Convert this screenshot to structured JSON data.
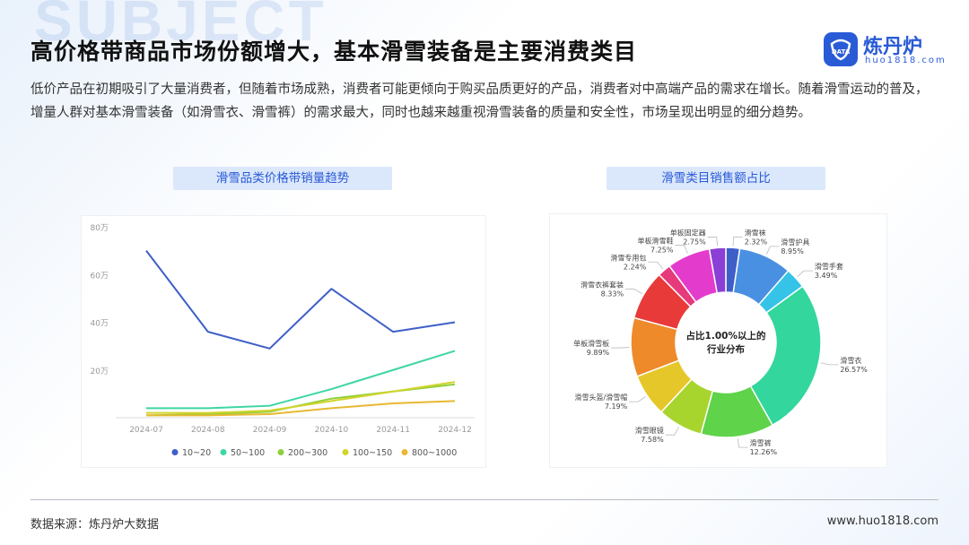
{
  "background_word": "SUBJECT",
  "header": {
    "title": "高价格带商品市场份额增大，基本滑雪装备是主要消费类目",
    "brand_name": "炼丹炉",
    "brand_url": "huo1818.com",
    "brand_badge": "DATA"
  },
  "description": "低价产品在初期吸引了大量消费者，但随着市场成熟，消费者可能更倾向于购买品质更好的产品，消费者对中高端产品的需求在增长。随着滑雪运动的普及，增量人群对基本滑雪装备（如滑雪衣、滑雪裤）的需求最大，同时也越来越重视滑雪装备的质量和安全性，市场呈现出明显的细分趋势。",
  "panels": {
    "left_title": "滑雪品类价格带销量趋势",
    "right_title": "滑雪类目销售额占比"
  },
  "chart_data": [
    {
      "type": "line",
      "title": "滑雪品类价格带销量趋势",
      "x": [
        "2024-07",
        "2024-08",
        "2024-09",
        "2024-10",
        "2024-11",
        "2024-12"
      ],
      "ylim": [
        0,
        80
      ],
      "yticks": [
        "",
        "20万",
        "40万",
        "60万",
        "80万"
      ],
      "ytick_values": [
        0,
        20,
        40,
        60,
        80
      ],
      "grid": false,
      "legend_position": "bottom",
      "series": [
        {
          "name": "10~20",
          "color": "#3f5fc8",
          "values": [
            70,
            36,
            29,
            54,
            36,
            40
          ]
        },
        {
          "name": "50~100",
          "color": "#3dd6a3",
          "values": [
            4,
            4,
            5,
            12,
            20,
            28
          ]
        },
        {
          "name": "200~300",
          "color": "#8fcf3a",
          "values": [
            1,
            1.5,
            2.5,
            8,
            11,
            14
          ]
        },
        {
          "name": "100~150",
          "color": "#d2d42c",
          "values": [
            2,
            2,
            3,
            7,
            11,
            15
          ]
        },
        {
          "name": "800~1000",
          "color": "#e8b830",
          "values": [
            1,
            1,
            1.5,
            4,
            6,
            7
          ]
        }
      ]
    },
    {
      "type": "pie",
      "title": "滑雪类目销售额占比",
      "center_text": [
        "占比1.00%以上的",
        "行业分布"
      ],
      "slices": [
        {
          "label": "滑雪袜",
          "pct": "2.32%",
          "value": 2.32,
          "color": "#3f5fc8"
        },
        {
          "label": "滑雪护具",
          "pct": "8.95%",
          "value": 8.95,
          "color": "#4a90e2"
        },
        {
          "label": "滑雪手套",
          "pct": "3.49%",
          "value": 3.49,
          "color": "#35c3e8"
        },
        {
          "label": "滑雪衣",
          "pct": "26.57%",
          "value": 26.57,
          "color": "#33d69c"
        },
        {
          "label": "滑雪裤",
          "pct": "12.26%",
          "value": 12.26,
          "color": "#5fd34a"
        },
        {
          "label": "滑雪眼镜",
          "pct": "7.58%",
          "value": 7.58,
          "color": "#a8d42e"
        },
        {
          "label": "滑雪头盔/滑雪帽",
          "pct": "7.19%",
          "value": 7.19,
          "color": "#e6c72a"
        },
        {
          "label": "单板滑雪板",
          "pct": "9.89%",
          "value": 9.89,
          "color": "#ee8a2a"
        },
        {
          "label": "滑雪衣裤套装",
          "pct": "8.33%",
          "value": 8.33,
          "color": "#e93a3a"
        },
        {
          "label": "滑雪专用包",
          "pct": "2.24%",
          "value": 2.24,
          "color": "#e63a7a"
        },
        {
          "label": "单板滑雪鞋",
          "pct": "7.25%",
          "value": 7.25,
          "color": "#e33ccd"
        },
        {
          "label": "单板固定器",
          "pct": "2.75%",
          "value": 2.75,
          "color": "#8b3fd6"
        }
      ]
    }
  ],
  "footer": {
    "source": "数据来源：炼丹炉大数据",
    "url": "www.huo1818.com"
  }
}
